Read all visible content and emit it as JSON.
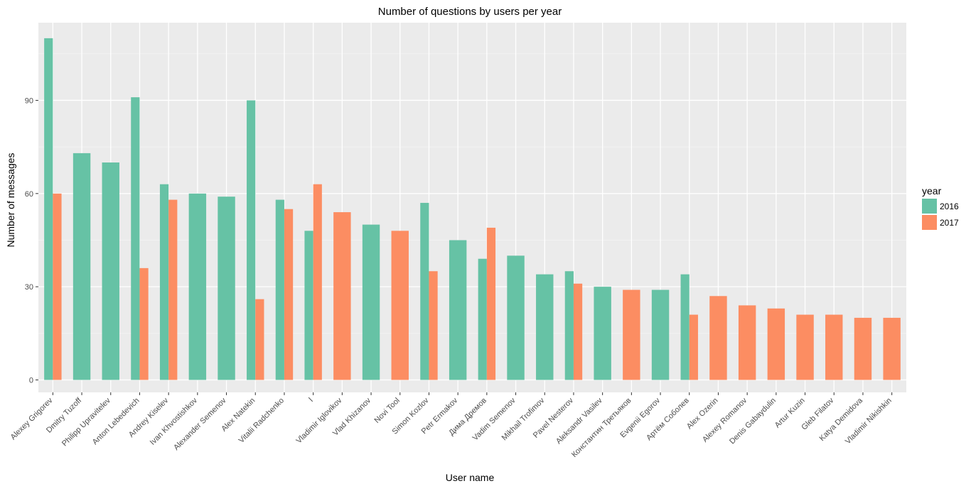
{
  "chart_data": {
    "type": "bar",
    "title": "Number of questions by users per year",
    "xlabel": "User name",
    "ylabel": "Number of messages",
    "ylim": [
      -4,
      115
    ],
    "yticks": [
      0,
      30,
      60,
      90
    ],
    "ytick_labels": [
      "0",
      "30",
      "60",
      "90"
    ],
    "grid": true,
    "legend": {
      "title": "year",
      "position": "right"
    },
    "categories": [
      "Alexey Grigorev",
      "Dmitry Tuzoff",
      "Philipp Upravitelev",
      "Anton Lebedevich",
      "Andrey Kiselev",
      "Ivan Khvostishkov",
      "Alexander Semenov",
      "Alex Natekin",
      "Vitalii Radchenko",
      "l",
      "Vladimir Iglovikov",
      "Vlad Khizanov",
      "Novi Tool",
      "Simon Kozlov",
      "Petr Ermakov",
      "Дима Дремов",
      "Vadim Semenov",
      "Mikhail Trofimov",
      "Pavel Nesterov",
      "Aleksandr Vasilev",
      "Константин Третьяков",
      "Evgenii Egorov",
      "Артём Соболев",
      "Alex Ozerin",
      "Alexey Romanov",
      "Denis Gabaydulin",
      "Artur Kuzin",
      "Gleb Filatov",
      "Katya Demidova",
      "Vladimir Nikishkin"
    ],
    "series": [
      {
        "name": "2016",
        "color": "#66c2a5",
        "values": [
          110,
          73,
          70,
          91,
          63,
          60,
          59,
          90,
          58,
          48,
          null,
          50,
          null,
          57,
          45,
          39,
          40,
          34,
          35,
          30,
          null,
          29,
          34,
          null,
          null,
          null,
          null,
          null,
          null,
          null
        ]
      },
      {
        "name": "2017",
        "color": "#fc8d62",
        "values": [
          60,
          null,
          null,
          36,
          58,
          null,
          null,
          26,
          55,
          63,
          54,
          null,
          48,
          35,
          null,
          49,
          null,
          null,
          31,
          null,
          29,
          null,
          21,
          27,
          24,
          23,
          21,
          21,
          20,
          20
        ]
      }
    ]
  }
}
